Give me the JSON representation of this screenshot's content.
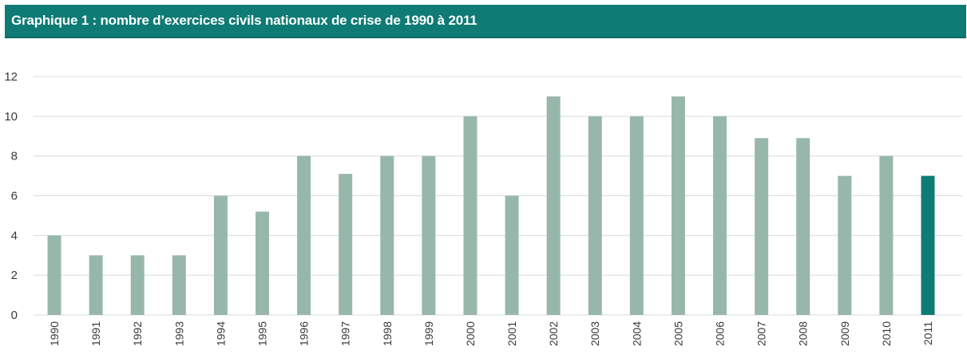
{
  "header": {
    "title": "Graphique 1 : nombre d’exercices civils nationaux de crise de 1990 à 2011"
  },
  "colors": {
    "header_bg": "#0e7b74",
    "bar": "#98b7ab",
    "bar_highlight": "#0e7b74",
    "grid": "#d6dcdc"
  },
  "chart_data": {
    "type": "bar",
    "title": "Graphique 1 : nombre d’exercices civils nationaux de crise de 1990 à 2011",
    "xlabel": "",
    "ylabel": "",
    "categories": [
      "1990",
      "1991",
      "1992",
      "1993",
      "1994",
      "1995",
      "1996",
      "1997",
      "1998",
      "1999",
      "2000",
      "2001",
      "2002",
      "2003",
      "2004",
      "2005",
      "2006",
      "2007",
      "2008",
      "2009",
      "2010",
      "2011"
    ],
    "values": [
      4,
      3,
      3,
      3,
      6,
      5.2,
      8,
      7.1,
      8,
      8,
      10,
      6,
      11,
      10,
      10,
      11,
      10,
      8.9,
      8.9,
      7,
      8,
      7
    ],
    "highlight_category": "2011",
    "ylim": [
      0,
      12
    ],
    "yticks": [
      "0",
      "2",
      "4",
      "6",
      "8",
      "10",
      "12"
    ],
    "grid": true,
    "legend": "none"
  }
}
